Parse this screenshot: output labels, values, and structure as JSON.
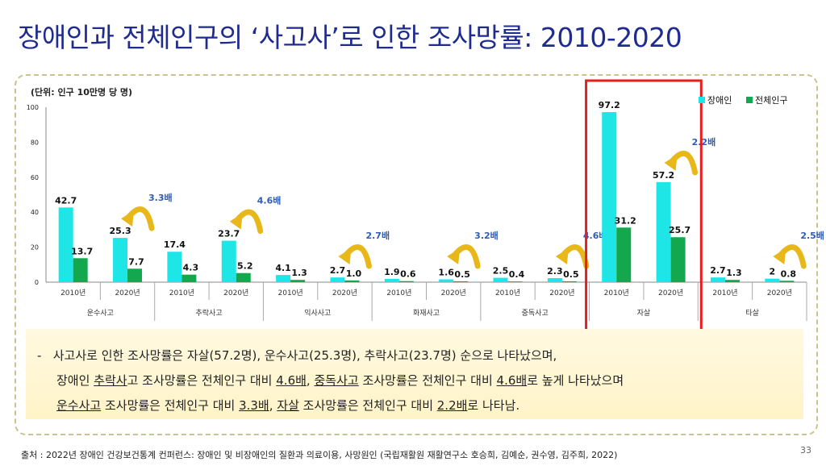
{
  "title": "장애인과 전체인구의 ‘사고사’로 인한 조사망률: 2010-2020",
  "unit_label": "(단위: 인구 10만명 당 명)",
  "chart_data": {
    "type": "bar",
    "ylim": [
      0,
      100
    ],
    "yticks": [
      0,
      20,
      40,
      60,
      80,
      100
    ],
    "legend": [
      "장애인",
      "전체인구"
    ],
    "colors": {
      "disabled": "#1ee6e6",
      "total": "#13a84e",
      "highlight": "#e61e1e",
      "arrow": "#e8b81a",
      "ratio_text": "#2e5cb8"
    },
    "groups": [
      {
        "name": "운수사고",
        "years": [
          {
            "year": "2010년",
            "disabled": 42.7,
            "total": 13.7
          },
          {
            "year": "2020년",
            "disabled": 25.3,
            "total": 7.7
          }
        ],
        "ratio": "3.3배"
      },
      {
        "name": "추락사고",
        "years": [
          {
            "year": "2010년",
            "disabled": 17.4,
            "total": 4.3
          },
          {
            "year": "2020년",
            "disabled": 23.7,
            "total": 5.2
          }
        ],
        "ratio": "4.6배"
      },
      {
        "name": "익사사고",
        "years": [
          {
            "year": "2010년",
            "disabled": 4.1,
            "total": 1.3
          },
          {
            "year": "2020년",
            "disabled": 2.7,
            "total": 1.0
          }
        ],
        "ratio": "2.7배"
      },
      {
        "name": "화재사고",
        "years": [
          {
            "year": "2010년",
            "disabled": 1.9,
            "total": 0.6
          },
          {
            "year": "2020년",
            "disabled": 1.6,
            "total": 0.5
          }
        ],
        "ratio": "3.2배"
      },
      {
        "name": "중독사고",
        "years": [
          {
            "year": "2010년",
            "disabled": 2.5,
            "total": 0.4
          },
          {
            "year": "2020년",
            "disabled": 2.3,
            "total": 0.5
          }
        ],
        "ratio": "4.6배"
      },
      {
        "name": "자살",
        "years": [
          {
            "year": "2010년",
            "disabled": 97.2,
            "total": 31.2
          },
          {
            "year": "2020년",
            "disabled": 57.2,
            "total": 25.7
          }
        ],
        "ratio": "2.2배"
      },
      {
        "name": "타살",
        "years": [
          {
            "year": "2010년",
            "disabled": 2.7,
            "total": 1.3
          },
          {
            "year": "2020년",
            "disabled": 2.0,
            "total": 0.8
          }
        ],
        "ratio": "2.5배"
      }
    ],
    "highlight_group": "자살"
  },
  "note": {
    "bullet": "-",
    "line1": "사고사로 인한 조사망률은 자살(57.2명), 운수사고(25.3명), 추락사고(23.7명) 순으로 나타났으며,",
    "line2": [
      {
        "t": "장애인 ",
        "u": false
      },
      {
        "t": "추락사",
        "u": true
      },
      {
        "t": "고 조사망률은 전체인구 대비 ",
        "u": false
      },
      {
        "t": "4.6배",
        "u": true
      },
      {
        "t": ", ",
        "u": false
      },
      {
        "t": "중독사고",
        "u": true
      },
      {
        "t": " 조사망률은 전체인구 대비 ",
        "u": false
      },
      {
        "t": "4.6배",
        "u": true
      },
      {
        "t": "로 높게 나타났으며",
        "u": false
      }
    ],
    "line3": [
      {
        "t": "운수사고",
        "u": true
      },
      {
        "t": " 조사망률은 전체인구 대비 ",
        "u": false
      },
      {
        "t": "3.3배",
        "u": true
      },
      {
        "t": ", ",
        "u": false
      },
      {
        "t": "자살",
        "u": true
      },
      {
        "t": " 조사망률은 전체인구 대비 ",
        "u": false
      },
      {
        "t": "2.2배",
        "u": true
      },
      {
        "t": "로 나타남.",
        "u": false
      }
    ]
  },
  "source": "출처 : 2022년 장애인 건강보건통계 컨퍼런스: 장애인 및 비장애인의 질환과 의료이용, 사망원인 (국립재활원 재활연구소 호승희, 김예순, 권수영, 김주희, 2022)",
  "page_number": "33"
}
